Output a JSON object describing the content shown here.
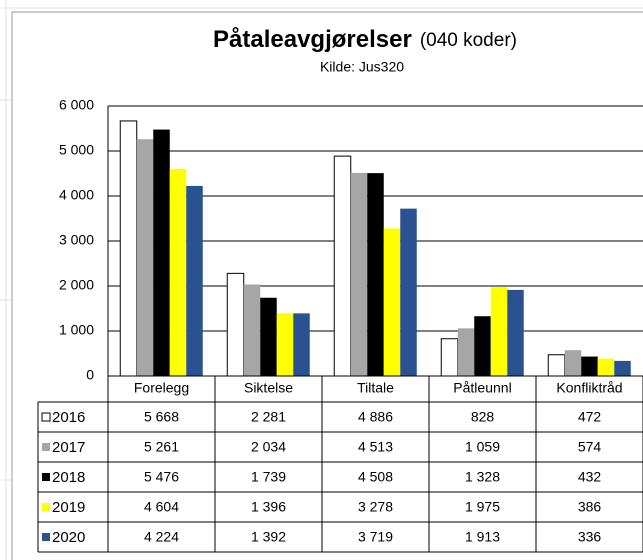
{
  "chart_data": {
    "type": "bar",
    "title": "Påtaleavgjørelser",
    "title_note": "(040 koder)",
    "subtitle": "Kilde: Jus320",
    "categories": [
      "Forelegg",
      "Siktelse",
      "Tiltale",
      "Påtleunnl",
      "Konfliktråd"
    ],
    "series": [
      {
        "name": "2016",
        "color": "#ffffff",
        "values": [
          5668,
          2281,
          4886,
          828,
          472
        ],
        "value_labels": [
          "5 668",
          "2 281",
          "4 886",
          "828",
          "472"
        ]
      },
      {
        "name": "2017",
        "color": "#a6a6a6",
        "values": [
          5261,
          2034,
          4513,
          1059,
          574
        ],
        "value_labels": [
          "5 261",
          "2 034",
          "4 513",
          "1 059",
          "574"
        ]
      },
      {
        "name": "2018",
        "color": "#000000",
        "values": [
          5476,
          1739,
          4508,
          1328,
          432
        ],
        "value_labels": [
          "5 476",
          "1 739",
          "4 508",
          "1 328",
          "432"
        ]
      },
      {
        "name": "2019",
        "color": "#ffff00",
        "values": [
          4604,
          1396,
          3278,
          1975,
          386
        ],
        "value_labels": [
          "4 604",
          "1 396",
          "3 278",
          "1 975",
          "386"
        ]
      },
      {
        "name": "2020",
        "color": "#2a5290",
        "values": [
          4224,
          1392,
          3719,
          1913,
          336
        ],
        "value_labels": [
          "4 224",
          "1 392",
          "3 719",
          "1 913",
          "336"
        ]
      }
    ],
    "ylim": [
      0,
      6000
    ],
    "yticks": [
      0,
      {
        "value": 1000,
        "label": "1 000"
      },
      {
        "value": 2000,
        "label": "2 000"
      },
      {
        "value": 3000,
        "label": "3 000"
      },
      {
        "value": 4000,
        "label": "4 000"
      },
      {
        "value": 5000,
        "label": "5 000"
      },
      {
        "value": 6000,
        "label": "6 000"
      }
    ],
    "grid": true
  }
}
